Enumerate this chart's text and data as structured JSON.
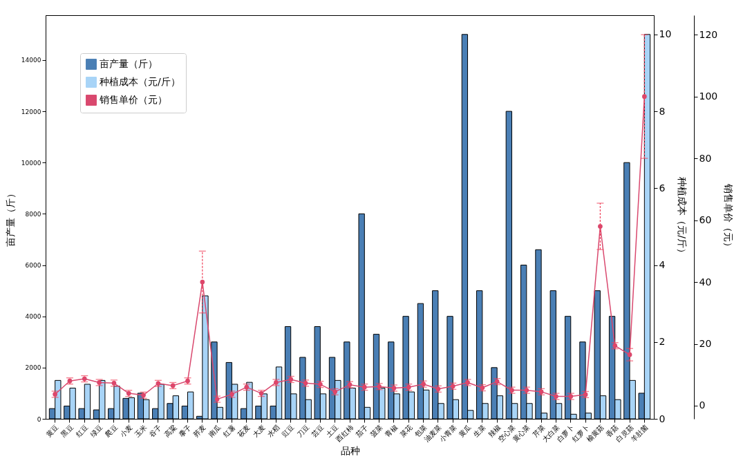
{
  "chart_data": {
    "type": "bar",
    "xlabel": "品种",
    "ylabel": "亩产量（斤）",
    "y2label": "种植成本（元/斤）",
    "y3label": "销售单价（元）",
    "categories": [
      "黄豆",
      "黑豆",
      "红豆",
      "绿豆",
      "爬豆",
      "小麦",
      "玉米",
      "谷子",
      "高粱",
      "黍子",
      "荞麦",
      "南瓜",
      "红薯",
      "莜麦",
      "大麦",
      "水稻",
      "豇豆",
      "刀豆",
      "芸豆",
      "土豆",
      "西红柿",
      "茄子",
      "菠菜",
      "青椒",
      "菜花",
      "包菜",
      "油麦菜",
      "小青菜",
      "黄瓜",
      "生菜",
      "辣椒",
      "空心菜",
      "黄心菜",
      "芹菜",
      "大白菜",
      "白萝卜",
      "红萝卜",
      "榆黄菇",
      "香菇",
      "白灵菇",
      "羊肚菌"
    ],
    "series": [
      {
        "name": "亩产量（斤）",
        "axis": "y",
        "color": "#4a7fb5",
        "values": [
          400,
          500,
          400,
          350,
          400,
          800,
          1000,
          400,
          600,
          500,
          100,
          3000,
          2200,
          400,
          500,
          500,
          3600,
          2400,
          3600,
          2400,
          3000,
          8000,
          3300,
          3000,
          4000,
          4500,
          5000,
          4000,
          15000,
          5000,
          2000,
          12000,
          6000,
          6600,
          5000,
          4000,
          3000,
          5000,
          4000,
          10000,
          1000
        ]
      },
      {
        "name": "种植成本（元/斤）",
        "axis": "y2",
        "color": "#a8d4f7",
        "values": [
          1.0,
          0.8,
          0.9,
          1.0,
          0.85,
          0.55,
          0.5,
          0.9,
          0.6,
          0.7,
          3.2,
          0.3,
          0.9,
          0.95,
          0.65,
          1.35,
          0.65,
          0.5,
          0.65,
          1.0,
          0.8,
          0.3,
          0.8,
          0.65,
          0.7,
          0.75,
          0.4,
          0.5,
          0.22,
          0.4,
          0.6,
          0.4,
          0.4,
          0.15,
          0.4,
          0.12,
          0.15,
          0.6,
          0.5,
          1.0,
          10
        ]
      },
      {
        "name": "销售单价（元）",
        "type": "line",
        "axis": "y3",
        "color": "#d9486e",
        "values": [
          3.7,
          8.0,
          8.7,
          7.5,
          7.3,
          4.0,
          3.4,
          7.2,
          6.5,
          8.0,
          40,
          2.1,
          3.7,
          6.0,
          4.0,
          7.5,
          8.5,
          7.3,
          6.9,
          4.5,
          6.8,
          6.0,
          6.2,
          5.7,
          6.0,
          7.0,
          5.4,
          6.3,
          7.5,
          5.8,
          7.8,
          5.0,
          5.0,
          4.5,
          3.0,
          3.0,
          3.6,
          58,
          19.4,
          16.5,
          100
        ],
        "errors": [
          1,
          1,
          1,
          1,
          1,
          1,
          1,
          1,
          1,
          1,
          10,
          1,
          1,
          1,
          1,
          1,
          1,
          1,
          1,
          1,
          1,
          1,
          1,
          1,
          1,
          1,
          1,
          1,
          1,
          1,
          1,
          1,
          1,
          1,
          1,
          1,
          1,
          7.5,
          1,
          2,
          20
        ]
      }
    ],
    "ylim": [
      0,
      15750
    ],
    "yticks": [
      0,
      2000,
      4000,
      6000,
      8000,
      10000,
      12000,
      14000
    ],
    "y2lim": [
      0,
      10.5
    ],
    "y2ticks": [
      0,
      2,
      4,
      6,
      8,
      10
    ],
    "y3lim": [
      -4.25,
      126.3
    ],
    "y3ticks": [
      0,
      20,
      40,
      60,
      80,
      100,
      120
    ],
    "legend": "top left",
    "marker": "circle",
    "line_style": "solid",
    "grid": false
  }
}
